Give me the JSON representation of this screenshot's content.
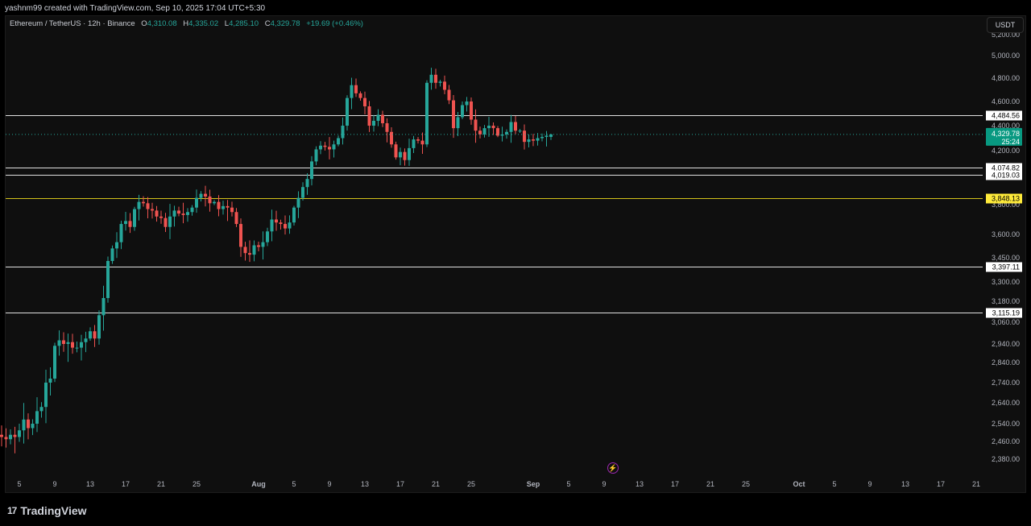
{
  "header": {
    "creator_line": "yashnm99 created with TradingView.com, Sep 10, 2025 17:04 UTC+5:30"
  },
  "legend": {
    "symbol": "Ethereum / TetherUS · 12h · Binance",
    "open_label": "O",
    "open": "4,310.08",
    "high_label": "H",
    "high": "4,335.02",
    "low_label": "L",
    "low": "4,285.10",
    "close_label": "C",
    "close": "4,329.78",
    "change": "+19.69 (+0.46%)"
  },
  "currency_button": "USDT",
  "footer": {
    "logo_text": "TradingView",
    "logo_mark": "17"
  },
  "flash_icon": "lightning-icon",
  "colors": {
    "up": "#26a69a",
    "down": "#ef5350",
    "background": "#0f0f0f",
    "hline": "#e0e0e0",
    "yellow_line": "#d4c21a",
    "yellow_label": "#ffeb3b",
    "price_tag": "#089981"
  },
  "chart_data": {
    "type": "candlestick",
    "ylim": [
      2320,
      5260
    ],
    "y_ticks": [
      {
        "v": 5200,
        "label": "5,200.00"
      },
      {
        "v": 5000,
        "label": "5,000.00"
      },
      {
        "v": 4800,
        "label": "4,800.00"
      },
      {
        "v": 4600,
        "label": "4,600.00"
      },
      {
        "v": 4400,
        "label": "4,400.00"
      },
      {
        "v": 4200,
        "label": "4,200.00"
      },
      {
        "v": 3800,
        "label": "3,800.00"
      },
      {
        "v": 3600,
        "label": "3,600.00"
      },
      {
        "v": 3450,
        "label": "3,450.00"
      },
      {
        "v": 3300,
        "label": "3,300.00"
      },
      {
        "v": 3180,
        "label": "3,180.00"
      },
      {
        "v": 3060,
        "label": "3,060.00"
      },
      {
        "v": 2940,
        "label": "2,940.00"
      },
      {
        "v": 2840,
        "label": "2,840.00"
      },
      {
        "v": 2740,
        "label": "2,740.00"
      },
      {
        "v": 2640,
        "label": "2,640.00"
      },
      {
        "v": 2540,
        "label": "2,540.00"
      },
      {
        "v": 2460,
        "label": "2,460.00"
      },
      {
        "v": 2380,
        "label": "2,380.00"
      }
    ],
    "x_ticks": [
      {
        "day": -27,
        "label": "5"
      },
      {
        "day": -23,
        "label": "9"
      },
      {
        "day": -19,
        "label": "13"
      },
      {
        "day": -15,
        "label": "17"
      },
      {
        "day": -11,
        "label": "21"
      },
      {
        "day": -7,
        "label": "25"
      },
      {
        "day": 0,
        "label": "Aug",
        "bold": true
      },
      {
        "day": 4,
        "label": "5"
      },
      {
        "day": 8,
        "label": "9"
      },
      {
        "day": 12,
        "label": "13"
      },
      {
        "day": 16,
        "label": "17"
      },
      {
        "day": 20,
        "label": "21"
      },
      {
        "day": 24,
        "label": "25"
      },
      {
        "day": 31,
        "label": "Sep",
        "bold": true
      },
      {
        "day": 35,
        "label": "5"
      },
      {
        "day": 39,
        "label": "9"
      },
      {
        "day": 43,
        "label": "13"
      },
      {
        "day": 47,
        "label": "17"
      },
      {
        "day": 51,
        "label": "21"
      },
      {
        "day": 55,
        "label": "25"
      },
      {
        "day": 61,
        "label": "Oct",
        "bold": true
      },
      {
        "day": 65,
        "label": "5"
      },
      {
        "day": 69,
        "label": "9"
      },
      {
        "day": 73,
        "label": "13"
      },
      {
        "day": 77,
        "label": "17"
      },
      {
        "day": 81,
        "label": "21"
      }
    ],
    "x_axis_unit": "day offset from Aug 1 (12h candles at half-day steps)",
    "horizontal_levels": [
      {
        "value": 4484.56,
        "label": "4,484.56",
        "color": "white"
      },
      {
        "value": 4074.82,
        "label": "4,074.82",
        "color": "white"
      },
      {
        "value": 4019.03,
        "label": "4,019.03",
        "color": "white"
      },
      {
        "value": 3848.13,
        "label": "3,848.13",
        "color": "yellow"
      },
      {
        "value": 3397.11,
        "label": "3,397.11",
        "color": "white"
      },
      {
        "value": 3115.19,
        "label": "3,115.19",
        "color": "white"
      }
    ],
    "current_price": {
      "value": 4329.78,
      "label": "4,329.78",
      "countdown": "25:24"
    },
    "candles_close": [
      2580,
      2500,
      2490,
      2480,
      2470,
      2490,
      2480,
      2510,
      2560,
      2520,
      2540,
      2600,
      2620,
      2740,
      2760,
      2930,
      2960,
      2940,
      2950,
      2920,
      2920,
      2950,
      2970,
      3010,
      2970,
      3100,
      3200,
      3430,
      3510,
      3550,
      3670,
      3690,
      3650,
      3770,
      3820,
      3810,
      3770,
      3760,
      3720,
      3710,
      3650,
      3720,
      3760,
      3740,
      3730,
      3750,
      3780,
      3850,
      3880,
      3860,
      3810,
      3820,
      3770,
      3790,
      3780,
      3750,
      3670,
      3520,
      3480,
      3470,
      3530,
      3520,
      3550,
      3620,
      3700,
      3680,
      3670,
      3640,
      3680,
      3780,
      3850,
      3930,
      3990,
      4120,
      4210,
      4240,
      4230,
      4210,
      4250,
      4300,
      4400,
      4630,
      4740,
      4670,
      4630,
      4560,
      4400,
      4440,
      4490,
      4420,
      4350,
      4250,
      4150,
      4190,
      4130,
      4220,
      4290,
      4280,
      4250,
      4760,
      4830,
      4760,
      4770,
      4700,
      4610,
      4380,
      4470,
      4570,
      4600,
      4450,
      4360,
      4330,
      4380,
      4400,
      4380,
      4320,
      4330,
      4350,
      4430,
      4360,
      4360,
      4270,
      4290,
      4280,
      4300,
      4310,
      4320,
      4330
    ],
    "last_candle": {
      "open": 4310.08,
      "high": 4335.02,
      "low": 4285.1,
      "close": 4329.78
    }
  }
}
